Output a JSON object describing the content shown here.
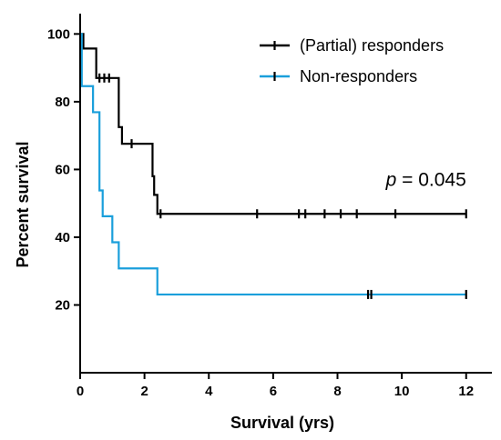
{
  "chart_data": {
    "type": "line",
    "step": true,
    "xlabel": "Survival (yrs)",
    "ylabel": "Percent survival",
    "xlim": [
      0,
      12.8
    ],
    "ylim": [
      0,
      106
    ],
    "xticks": [
      0,
      2,
      4,
      6,
      8,
      10,
      12
    ],
    "yticks": [
      20,
      40,
      60,
      80,
      100
    ],
    "legend_position": "top-right",
    "annotation": {
      "italic": "p",
      "rest": " = 0.045",
      "x": 12,
      "y": 57
    },
    "series": [
      {
        "name": "(Partial) responders",
        "color": "#000000",
        "steps": [
          [
            0,
            100
          ],
          [
            0.1,
            95.7
          ],
          [
            0.5,
            87
          ],
          [
            1.1,
            87
          ],
          [
            1.2,
            72.5
          ],
          [
            1.3,
            67.6
          ],
          [
            2.2,
            67.6
          ],
          [
            2.25,
            58
          ],
          [
            2.3,
            52.5
          ],
          [
            2.4,
            46.9
          ],
          [
            12,
            46.9
          ]
        ],
        "censored": [
          [
            0.6,
            87
          ],
          [
            0.75,
            87
          ],
          [
            0.9,
            87
          ],
          [
            1.6,
            67.6
          ],
          [
            2.5,
            46.9
          ],
          [
            5.5,
            46.9
          ],
          [
            6.8,
            46.9
          ],
          [
            7,
            46.9
          ],
          [
            7.6,
            46.9
          ],
          [
            8.1,
            46.9
          ],
          [
            8.6,
            46.9
          ],
          [
            9.8,
            46.9
          ],
          [
            12,
            46.9
          ]
        ]
      },
      {
        "name": "Non-responders",
        "color": "#1a9fdb",
        "steps": [
          [
            0,
            100
          ],
          [
            0.05,
            84.6
          ],
          [
            0.4,
            76.9
          ],
          [
            0.6,
            53.8
          ],
          [
            0.7,
            46.2
          ],
          [
            1,
            38.5
          ],
          [
            1.2,
            30.8
          ],
          [
            2.4,
            23.1
          ],
          [
            12,
            23.1
          ]
        ],
        "censored": [
          [
            8.95,
            23.1
          ],
          [
            9.05,
            23.1
          ],
          [
            12,
            23.1
          ]
        ]
      }
    ]
  }
}
